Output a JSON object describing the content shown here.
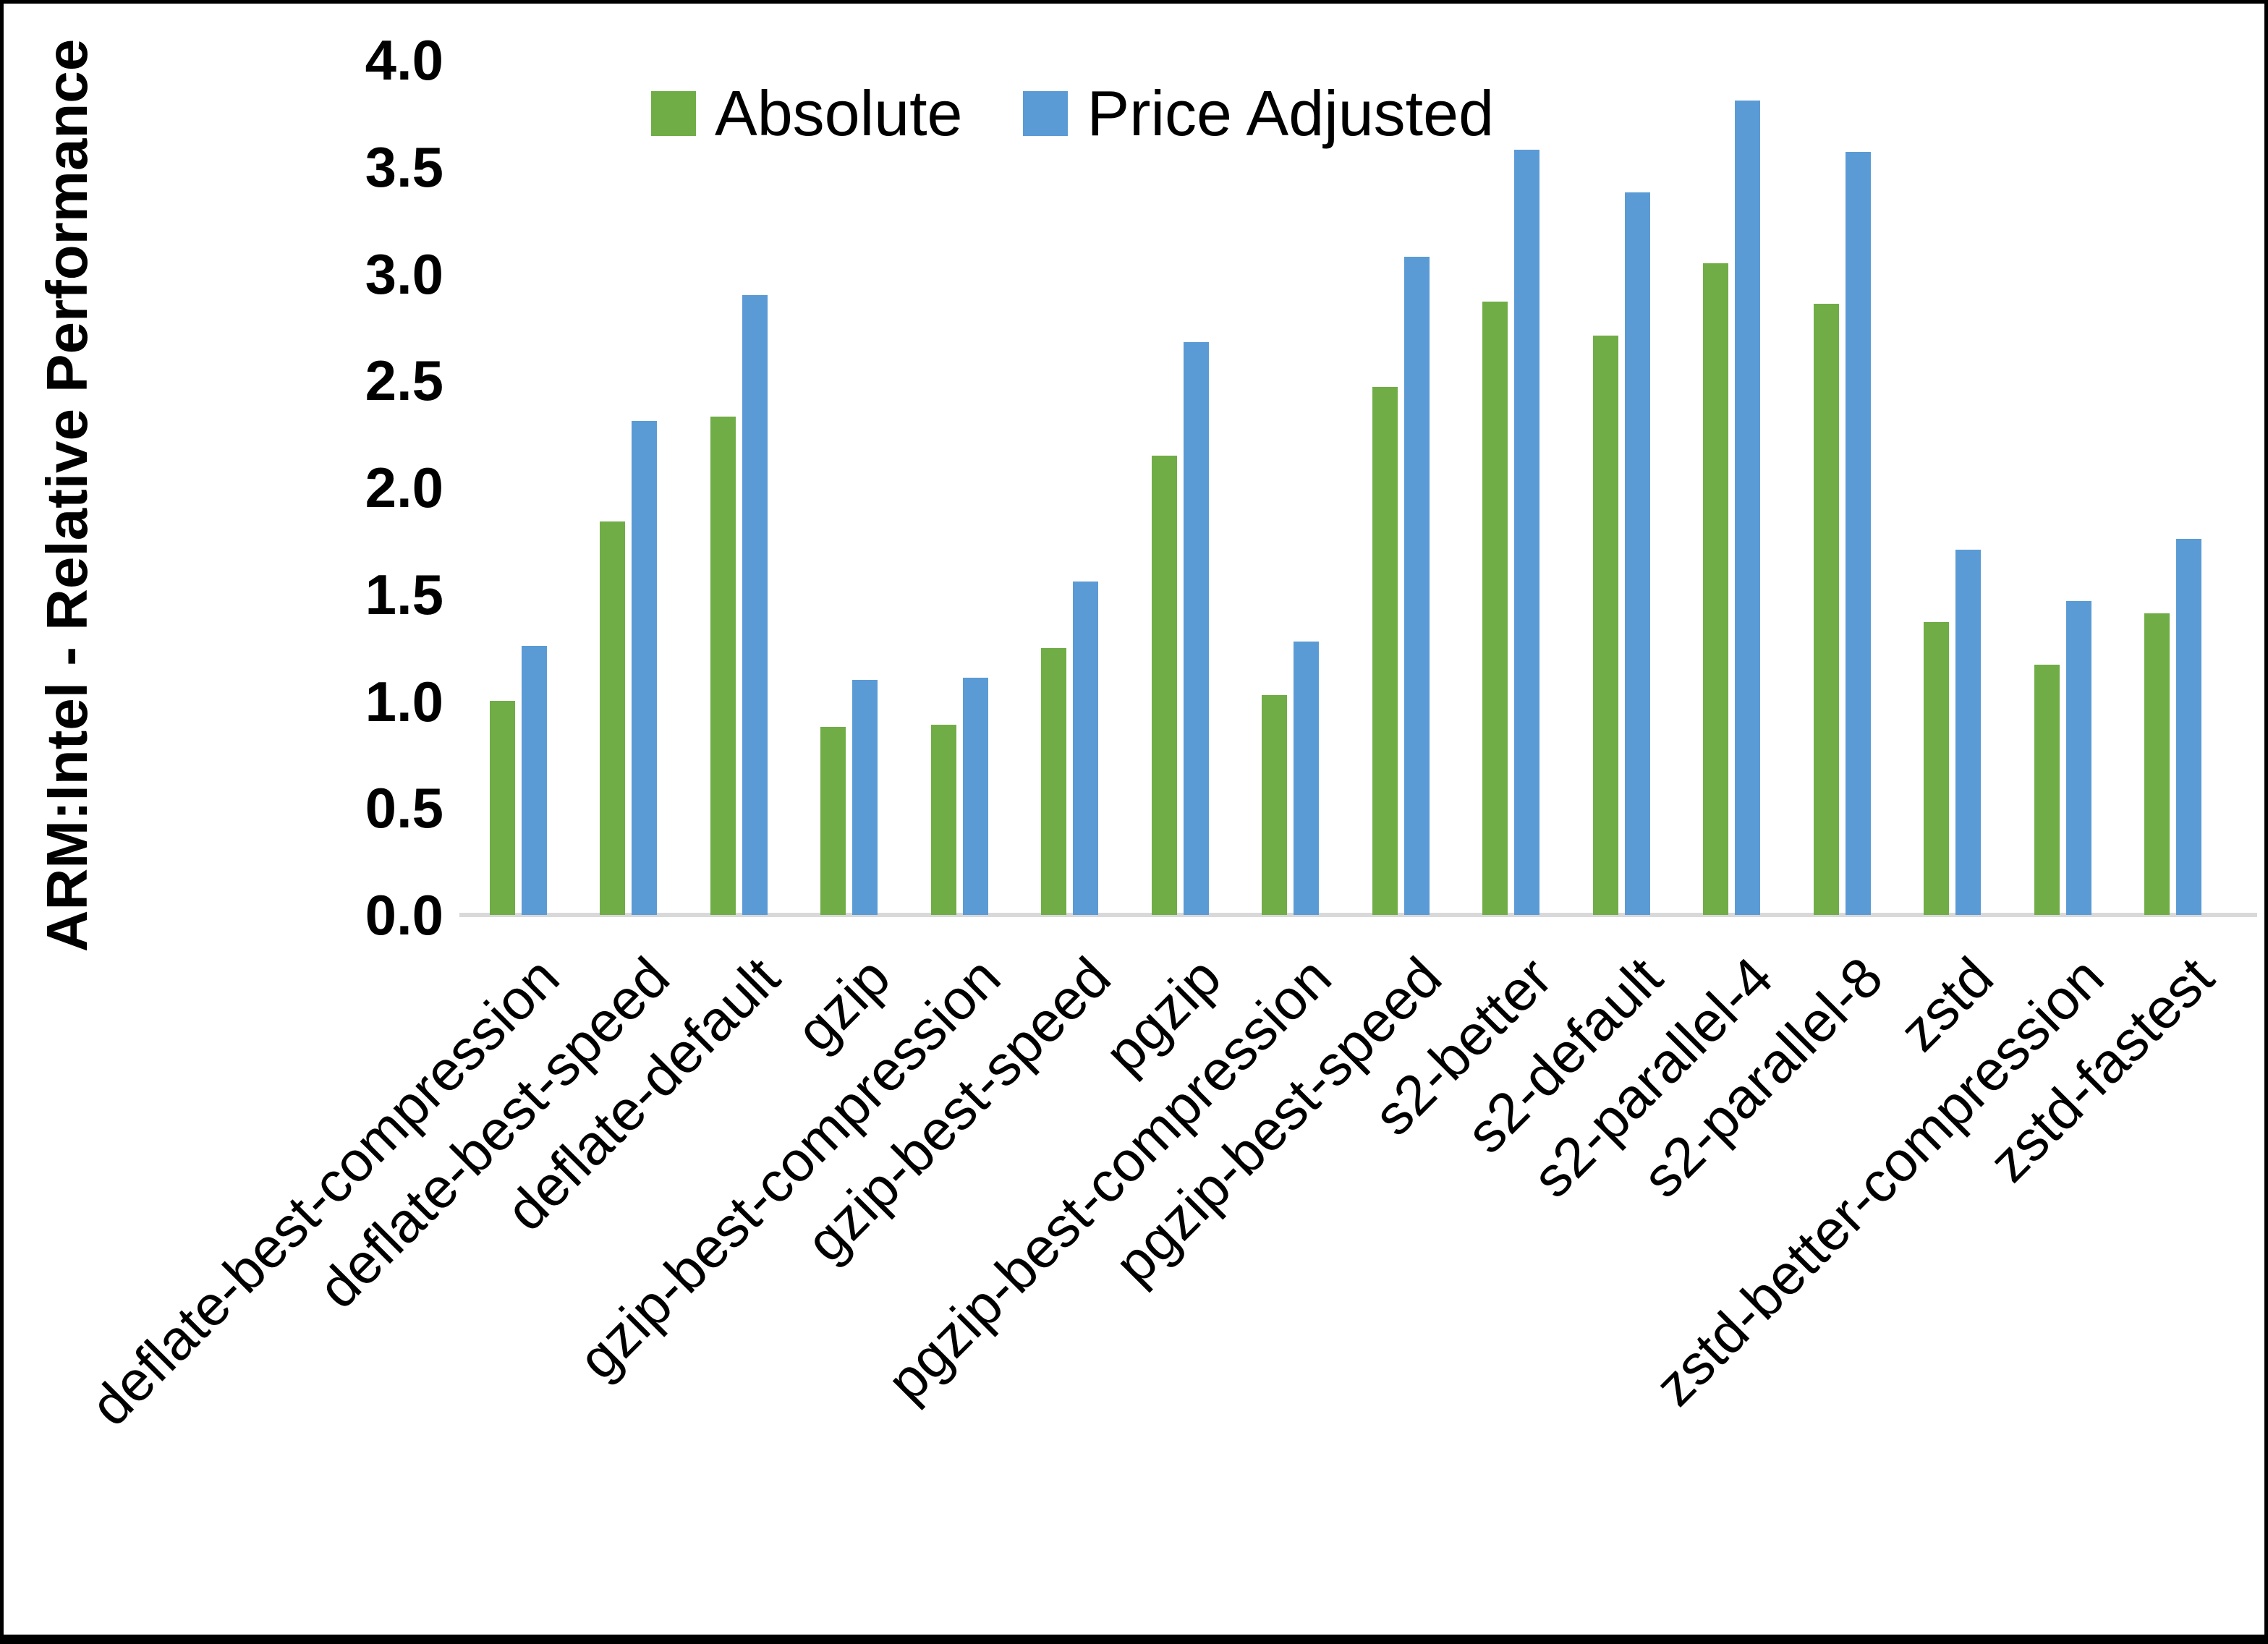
{
  "chart_data": {
    "type": "bar",
    "ylabel": "ARM:Intel - Relative Performance",
    "xlabel": "",
    "ylim": [
      0.0,
      4.0
    ],
    "ytick_step": 0.5,
    "ytick_labels": [
      "0.0",
      "0.5",
      "1.0",
      "1.5",
      "2.0",
      "2.5",
      "3.0",
      "3.5",
      "4.0"
    ],
    "grid": false,
    "legend_position": "top",
    "axis_line_color": "#D9D9D9",
    "categories": [
      "deflate-best-compression",
      "deflate-best-speed",
      "deflate-default",
      "gzip",
      "gzip-best-compression",
      "gzip-best-speed",
      "pgzip",
      "pgzip-best-compression",
      "pgzip-best-speed",
      "s2-better",
      "s2-default",
      "s2-parallel-4",
      "s2-parallel-8",
      "zstd",
      "zstd-better-compression",
      "zstd-fastest"
    ],
    "series": [
      {
        "name": "Absolute",
        "color": "#70AD47",
        "values": [
          1.0,
          1.84,
          2.33,
          0.88,
          0.89,
          1.25,
          2.15,
          1.03,
          2.47,
          2.87,
          2.71,
          3.05,
          2.86,
          1.37,
          1.17,
          1.41
        ]
      },
      {
        "name": "Price Adjusted",
        "color": "#5B9BD5",
        "values": [
          1.26,
          2.31,
          2.9,
          1.1,
          1.11,
          1.56,
          2.68,
          1.28,
          3.08,
          3.58,
          3.38,
          3.81,
          3.57,
          1.71,
          1.47,
          1.76
        ]
      }
    ]
  }
}
